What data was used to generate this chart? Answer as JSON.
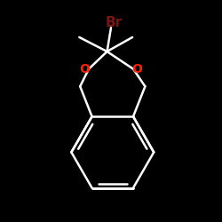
{
  "background_color": "#000000",
  "bond_color": "#ffffff",
  "bond_width": 1.8,
  "br_color": "#7a1515",
  "o_color": "#ff2200",
  "br_label": "Br",
  "br_fontsize": 11,
  "o_fontsize": 10,
  "figsize": [
    2.5,
    2.5
  ],
  "dpi": 100,
  "xlim": [
    -1.3,
    1.3
  ],
  "ylim": [
    -1.6,
    1.2
  ]
}
